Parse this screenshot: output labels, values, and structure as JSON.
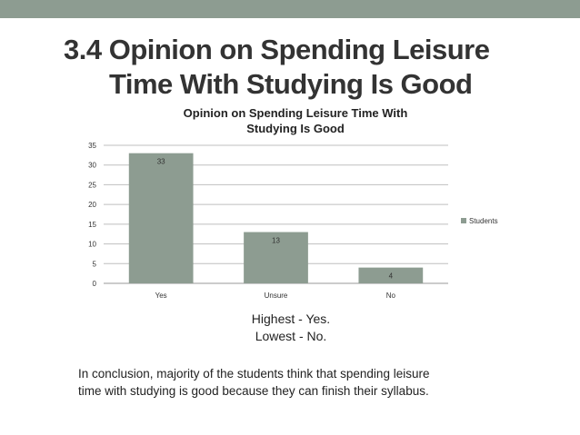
{
  "slide": {
    "title_line1": "3.4   Opinion on Spending Leisure",
    "title_line2": "Time With Studying Is Good",
    "summary_line1": "Highest - Yes.",
    "summary_line2": "Lowest - No.",
    "conclusion_line1": "In conclusion, majority of the students think that spending leisure",
    "conclusion_line2": "time with studying is good because they can finish their syllabus.",
    "accent_color": "#8d9c91"
  },
  "chart_data": {
    "type": "bar",
    "title_line1": "Opinion on Spending Leisure Time With",
    "title_line2": "Studying Is Good",
    "categories": [
      "Yes",
      "Unsure",
      "No"
    ],
    "series": [
      {
        "name": "Students",
        "values": [
          33,
          13,
          4
        ],
        "color": "#8d9c91"
      }
    ],
    "ylim": [
      0,
      35
    ],
    "yticks": [
      0,
      5,
      10,
      15,
      20,
      25,
      30,
      35
    ],
    "grid": true,
    "legend_position": "right",
    "data_labels": true
  }
}
